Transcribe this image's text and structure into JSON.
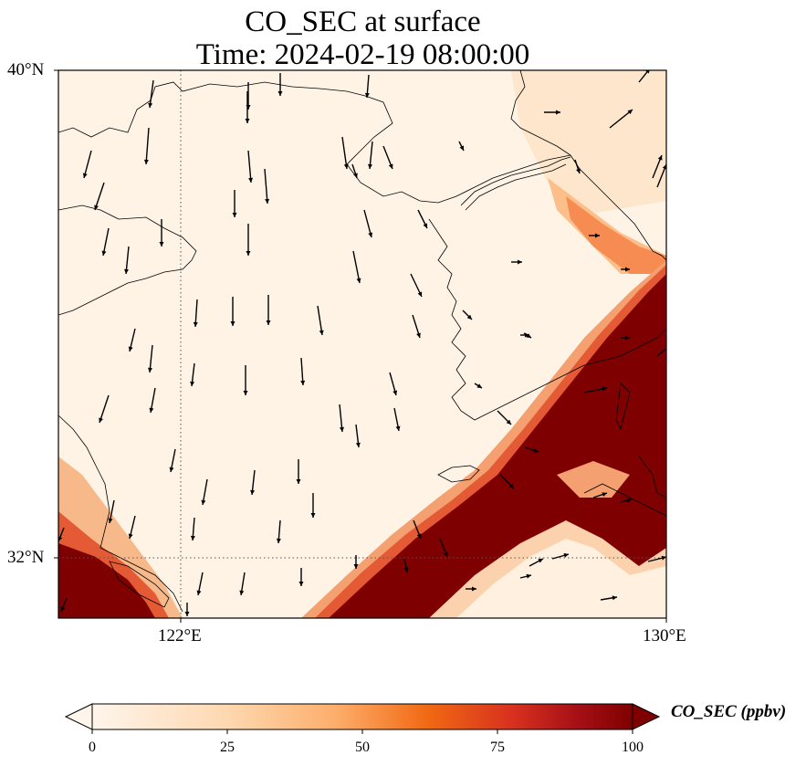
{
  "title_line1": "CO_SEC at surface",
  "title_line2": "Time: 2024-02-19 08:00:00",
  "map": {
    "lat_labels": [
      "40°N",
      "32°N"
    ],
    "lon_labels": [
      "122°E",
      "130°E"
    ],
    "lon_range": [
      120,
      130
    ],
    "lat_range": [
      31,
      40
    ],
    "gridlines": "dotted at 122°E and 32°N"
  },
  "colorbar": {
    "label": "CO_SEC (ppbv)",
    "ticks": [
      "0",
      "25",
      "50",
      "75",
      "100"
    ],
    "range": [
      0,
      100
    ],
    "colormap": [
      "#fff5eb",
      "#fdd49e",
      "#fdae6b",
      "#f16913",
      "#d7301f",
      "#7f0000"
    ],
    "extend": "both"
  },
  "colors": {
    "high": "#7f0000",
    "low": "#fff5eb",
    "coast": "#000000"
  }
}
